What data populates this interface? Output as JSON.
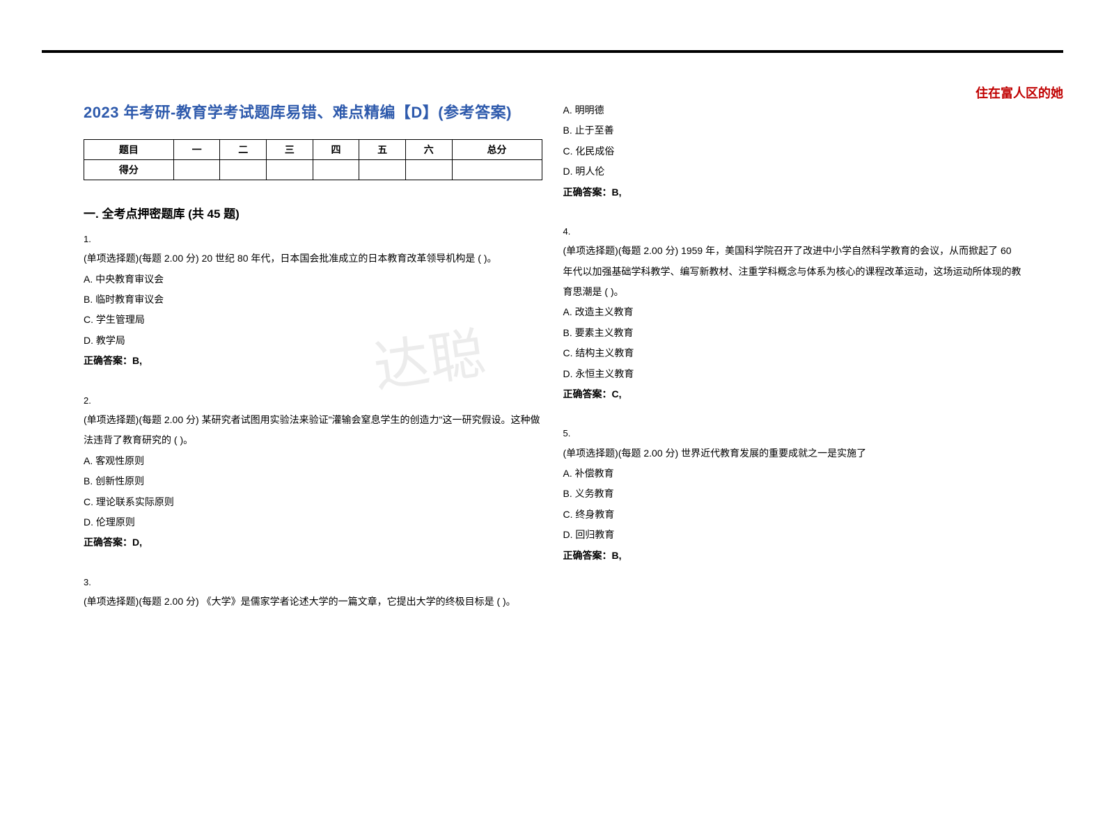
{
  "header_watermark": "住在富人区的她",
  "header_watermark_color": "#c00000",
  "doc_title": "2023 年考研-教育学考试题库易错、难点精编【D】(参考答案)",
  "doc_title_color": "#2e5aac",
  "score_table": {
    "headers": [
      "题目",
      "一",
      "二",
      "三",
      "四",
      "五",
      "六",
      "总分"
    ],
    "row_label": "得分"
  },
  "section_title": "一. 全考点押密题库 (共 45 题)",
  "bg_watermark_text": "达聪",
  "questions_left": [
    {
      "num": "1.",
      "stem": "(单项选择题)(每题 2.00 分) 20 世纪 80 年代，日本国会批准成立的日本教育改革领导机构是 ( )。",
      "options": [
        "A. 中央教育审议会",
        "B. 临时教育审议会",
        "C. 学生管理局",
        "D. 教学局"
      ],
      "answer": "正确答案：B,"
    },
    {
      "num": "2.",
      "stem": "(单项选择题)(每题 2.00 分) 某研究者试图用实验法来验证\"灌输会窒息学生的创造力\"这一研究假设。这种做法违背了教育研究的 ( )。",
      "options": [
        "A. 客观性原则",
        "B. 创新性原则",
        "C. 理论联系实际原则",
        "D. 伦理原则"
      ],
      "answer": "正确答案：D,"
    },
    {
      "num": "3.",
      "stem": "(单项选择题)(每题 2.00 分) 《大学》是儒家学者论述大学的一篇文章，它提出大学的终极目标是 ( )。",
      "options": [],
      "answer": ""
    }
  ],
  "questions_right": [
    {
      "num": "",
      "stem": "",
      "options": [
        "A. 明明德",
        "B. 止于至善",
        "C. 化民成俗",
        "D. 明人伦"
      ],
      "answer": "正确答案：B,"
    },
    {
      "num": "4.",
      "stem": "(单项选择题)(每题 2.00 分) 1959 年，美国科学院召开了改进中小学自然科学教育的会议，从而掀起了 60 年代以加强基础学科教学、编写新教材、注重学科概念与体系为核心的课程改革运动，这场运动所体现的教育思潮是 ( )。",
      "options": [
        "A. 改造主义教育",
        "B. 要素主义教育",
        "C. 结构主义教育",
        "D. 永恒主义教育"
      ],
      "answer": "正确答案：C,"
    },
    {
      "num": "5.",
      "stem": "(单项选择题)(每题 2.00 分) 世界近代教育发展的重要成就之一是实施了",
      "options": [
        "A. 补偿教育",
        "B. 义务教育",
        "C. 终身教育",
        "D. 回归教育"
      ],
      "answer": "正确答案：B,"
    }
  ]
}
